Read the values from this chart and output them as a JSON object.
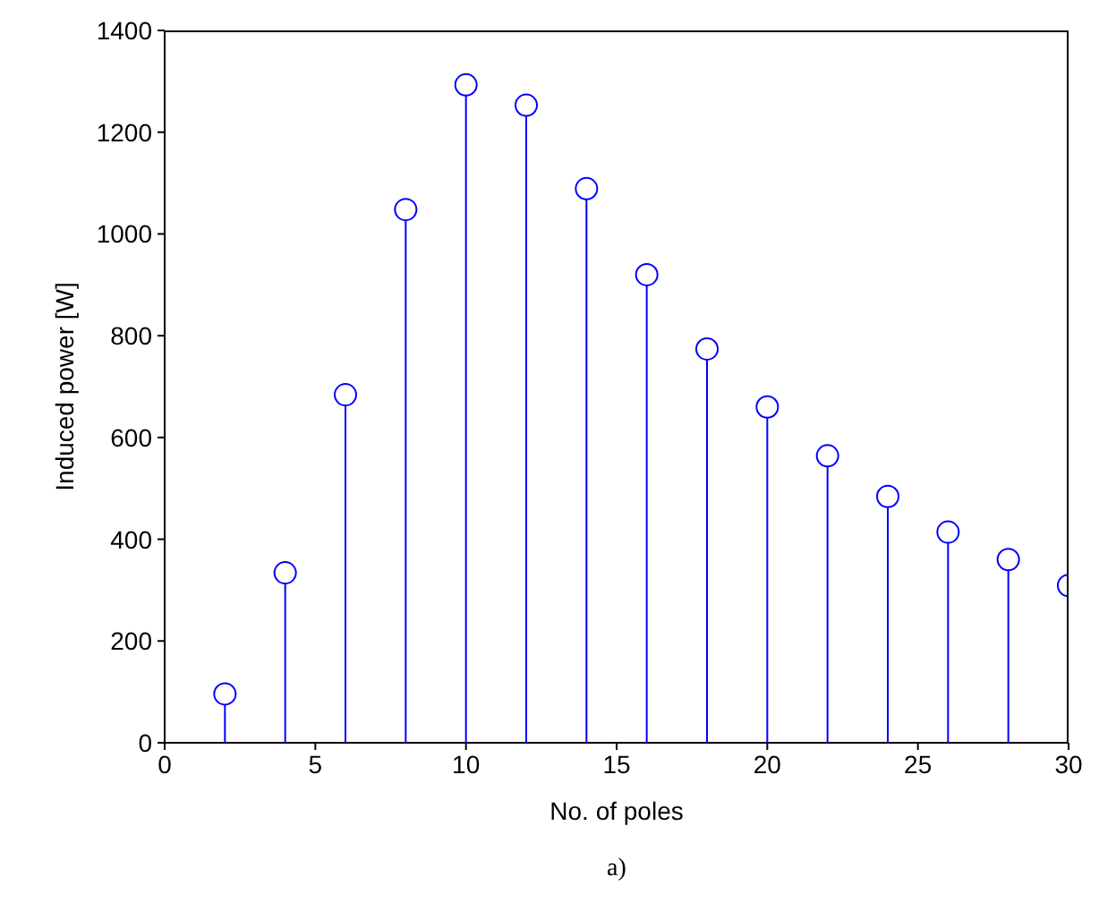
{
  "chart_data": {
    "type": "lollipop",
    "xlabel": "No. of poles",
    "ylabel": "Induced power [W]",
    "x": [
      2,
      4,
      6,
      8,
      10,
      12,
      14,
      16,
      18,
      20,
      22,
      24,
      26,
      28,
      30
    ],
    "series": [
      {
        "color": "#0000ff",
        "values": [
          96,
          334,
          684,
          1048,
          1293,
          1253,
          1089,
          920,
          774,
          660,
          564,
          484,
          414,
          360,
          309
        ]
      }
    ],
    "xlim": [
      0,
      30
    ],
    "xticks": [
      0,
      5,
      10,
      15,
      20,
      25,
      30
    ],
    "ylim": [
      0,
      1400
    ],
    "yticks": [
      0,
      200,
      400,
      600,
      800,
      1000,
      1200,
      1400
    ],
    "marker": "circle",
    "grid": false,
    "annotations": [
      "a)"
    ]
  }
}
